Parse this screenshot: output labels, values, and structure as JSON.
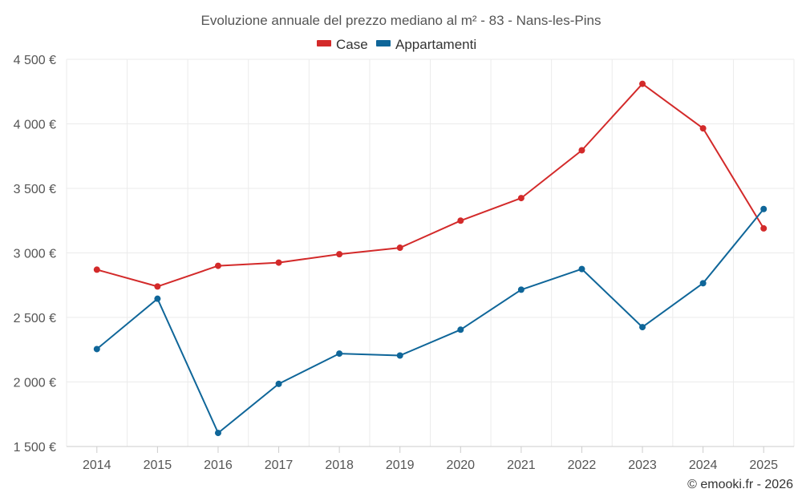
{
  "chart_data": {
    "type": "line",
    "title": "Evoluzione annuale del prezzo mediano al m² - 83 - Nans-les-Pins",
    "x": [
      "2014",
      "2015",
      "2016",
      "2017",
      "2018",
      "2019",
      "2020",
      "2021",
      "2022",
      "2023",
      "2024",
      "2025"
    ],
    "series": [
      {
        "name": "Case",
        "color": "#d32a2a",
        "values": [
          2870,
          2740,
          2900,
          2925,
          2990,
          3040,
          3250,
          3425,
          3795,
          4310,
          3965,
          3190
        ]
      },
      {
        "name": "Appartamenti",
        "color": "#0f6699",
        "values": [
          2255,
          2645,
          1605,
          1985,
          2220,
          2205,
          2405,
          2715,
          2875,
          2425,
          2765,
          3340
        ]
      }
    ],
    "ylim": [
      1500,
      4500
    ],
    "yticks": [
      1500,
      2000,
      2500,
      3000,
      3500,
      4000,
      4500
    ],
    "ytick_labels": [
      "1 500 €",
      "2 000 €",
      "2 500 €",
      "3 000 €",
      "3 500 €",
      "4 000 €",
      "4 500 €"
    ],
    "xlabel": "",
    "ylabel": "",
    "grid": true,
    "legend_position": "top-center",
    "credit": "© emooki.fr - 2026"
  }
}
